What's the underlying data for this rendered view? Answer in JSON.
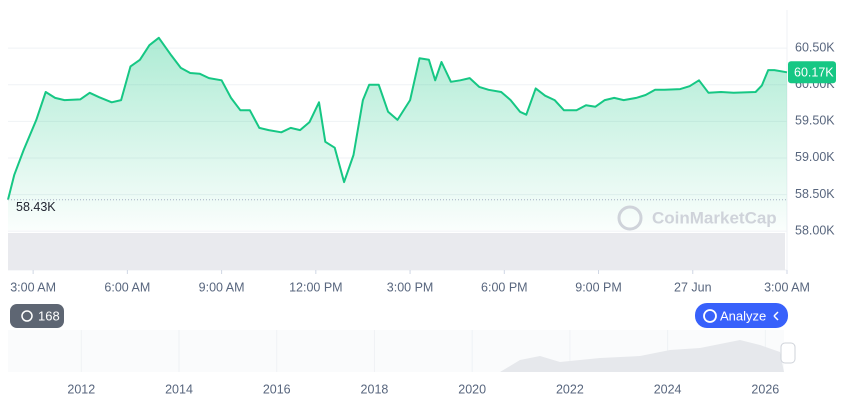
{
  "chart_data": {
    "type": "line",
    "x": [
      2.2,
      2.4,
      2.7,
      3.1,
      3.4,
      3.7,
      4.0,
      4.5,
      4.8,
      5.1,
      5.5,
      5.8,
      6.1,
      6.4,
      6.7,
      7.0,
      7.4,
      7.7,
      8.0,
      8.3,
      8.6,
      9.0,
      9.3,
      9.6,
      9.9,
      10.2,
      10.5,
      10.9,
      11.2,
      11.5,
      11.8,
      12.1,
      12.3,
      12.6,
      12.9,
      13.2,
      13.5,
      13.7,
      14.0,
      14.3,
      14.6,
      15.0,
      15.3,
      15.6,
      15.8,
      16.0,
      16.3,
      16.6,
      16.9,
      17.2,
      17.5,
      17.9,
      18.2,
      18.5,
      18.7,
      19.0,
      19.3,
      19.6,
      19.9,
      20.3,
      20.6,
      20.9,
      21.2,
      21.5,
      21.8,
      22.2,
      22.5,
      22.8,
      23.1,
      23.6,
      23.9,
      24.2,
      24.5,
      24.9,
      25.3,
      26.0,
      26.2,
      26.4,
      26.6,
      27.0
    ],
    "series": [
      {
        "color": "#16c784",
        "values": [
          58430,
          58770,
          59110,
          59520,
          59900,
          59820,
          59790,
          59800,
          59890,
          59830,
          59760,
          59790,
          60250,
          60340,
          60540,
          60640,
          60400,
          60230,
          60160,
          60150,
          60090,
          60060,
          59820,
          59650,
          59650,
          59410,
          59380,
          59350,
          59410,
          59380,
          59490,
          59760,
          59220,
          59140,
          58670,
          59040,
          59790,
          60000,
          60000,
          59630,
          59520,
          59790,
          60360,
          60340,
          60060,
          60310,
          60040,
          60060,
          60090,
          59970,
          59930,
          59900,
          59790,
          59630,
          59590,
          59950,
          59850,
          59790,
          59650,
          59650,
          59720,
          59700,
          59790,
          59820,
          59790,
          59820,
          59860,
          59930,
          59930,
          59940,
          59980,
          60060,
          59890,
          59900,
          59890,
          59900,
          59990,
          60200,
          60200,
          60170
        ]
      }
    ],
    "xlim": [
      2.2,
      27
    ],
    "xticks": [
      {
        "value": 3,
        "label": "3:00 AM"
      },
      {
        "value": 6,
        "label": "6:00 AM"
      },
      {
        "value": 9,
        "label": "9:00 AM"
      },
      {
        "value": 12,
        "label": "12:00 PM"
      },
      {
        "value": 15,
        "label": "3:00 PM"
      },
      {
        "value": 18,
        "label": "6:00 PM"
      },
      {
        "value": 21,
        "label": "9:00 PM"
      },
      {
        "value": 24,
        "label": "27 Jun"
      },
      {
        "value": 27,
        "label": "3:00 AM"
      }
    ],
    "ylim": [
      57470,
      61020
    ],
    "yticks": [
      {
        "value": 58000,
        "label": "58.00K"
      },
      {
        "value": 58500,
        "label": "58.50K"
      },
      {
        "value": 59000,
        "label": "59.00K"
      },
      {
        "value": 59500,
        "label": "59.50K"
      },
      {
        "value": 60000,
        "label": "60.00K"
      },
      {
        "value": 60500,
        "label": "60.50K"
      }
    ],
    "grid": true,
    "reference": {
      "value": 58430,
      "label": "58.43K"
    },
    "current": {
      "value": 60170,
      "label": "60.17K"
    },
    "watermark": "CoinMarketCap",
    "navigator": {
      "xlim": [
        2010.5,
        2026.3
      ],
      "xticks": [
        2012,
        2014,
        2016,
        2018,
        2020,
        2022,
        2024,
        2026
      ]
    }
  },
  "ui": {
    "history_count": 168,
    "analyze_button": "Analyze"
  }
}
